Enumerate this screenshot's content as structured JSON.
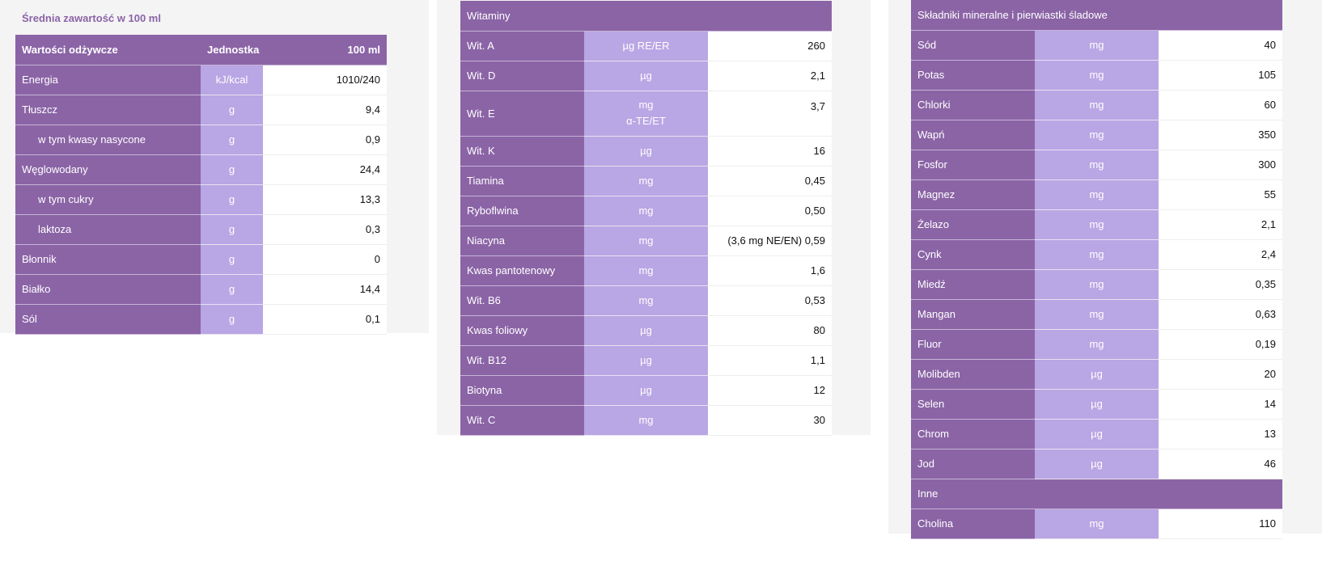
{
  "nutrition": {
    "caption": "Średnia zawartość w 100 ml",
    "header": {
      "name": "Wartości odżywcze",
      "unit": "Jednostka",
      "value": "100 ml"
    },
    "rows": [
      {
        "name": "Energia",
        "unit": "kJ/kcal",
        "value": "1010/240",
        "indent": false
      },
      {
        "name": "Tłuszcz",
        "unit": "g",
        "value": "9,4",
        "indent": false
      },
      {
        "name": "w tym kwasy nasycone",
        "unit": "g",
        "value": "0,9",
        "indent": true
      },
      {
        "name": "Węglowodany",
        "unit": "g",
        "value": "24,4",
        "indent": false
      },
      {
        "name": "w tym cukry",
        "unit": "g",
        "value": "13,3",
        "indent": true
      },
      {
        "name": "laktoza",
        "unit": "g",
        "value": "0,3",
        "indent": true
      },
      {
        "name": "Błonnik",
        "unit": "g",
        "value": "0",
        "indent": false
      },
      {
        "name": "Białko",
        "unit": "g",
        "value": "14,4",
        "indent": false
      },
      {
        "name": "Sól",
        "unit": "g",
        "value": "0,1",
        "indent": false
      }
    ]
  },
  "vitamins": {
    "title": "Witaminy",
    "rows": [
      {
        "name": "Wit. A",
        "unit": "µg RE/ER",
        "value": "260"
      },
      {
        "name": "Wit. D",
        "unit": "µg",
        "value": "2,1"
      },
      {
        "name": "Wit. E",
        "unit": "mg",
        "unit2": "α-TE/ET",
        "value": "3,7"
      },
      {
        "name": "Wit. K",
        "unit": "µg",
        "value": "16"
      },
      {
        "name": "Tiamina",
        "unit": "mg",
        "value": "0,45"
      },
      {
        "name": "Ryboflwina",
        "unit": "mg",
        "value": "0,50"
      },
      {
        "name": "Niacyna",
        "unit": "mg",
        "value": "(3,6 mg NE/EN) 0,59"
      },
      {
        "name": "Kwas pantotenowy",
        "unit": "mg",
        "value": "1,6"
      },
      {
        "name": "Wit. B6",
        "unit": "mg",
        "value": "0,53"
      },
      {
        "name": "Kwas foliowy",
        "unit": "µg",
        "value": "80"
      },
      {
        "name": "Wit. B12",
        "unit": "µg",
        "value": "1,1"
      },
      {
        "name": "Biotyna",
        "unit": "µg",
        "value": "12"
      },
      {
        "name": "Wit. C",
        "unit": "mg",
        "value": "30"
      }
    ]
  },
  "minerals": {
    "title": "Składniki mineralne i pierwiastki śladowe",
    "rows": [
      {
        "name": "Sód",
        "unit": "mg",
        "value": "40"
      },
      {
        "name": "Potas",
        "unit": "mg",
        "value": "105"
      },
      {
        "name": "Chlorki",
        "unit": "mg",
        "value": "60"
      },
      {
        "name": "Wapń",
        "unit": "mg",
        "value": "350"
      },
      {
        "name": "Fosfor",
        "unit": "mg",
        "value": "300"
      },
      {
        "name": "Magnez",
        "unit": "mg",
        "value": "55"
      },
      {
        "name": "Żelazo",
        "unit": "mg",
        "value": "2,1"
      },
      {
        "name": "Cynk",
        "unit": "mg",
        "value": "2,4"
      },
      {
        "name": "Miedź",
        "unit": "mg",
        "value": "0,35"
      },
      {
        "name": "Mangan",
        "unit": "mg",
        "value": "0,63"
      },
      {
        "name": "Fluor",
        "unit": "mg",
        "value": "0,19"
      },
      {
        "name": "Molibden",
        "unit": "µg",
        "value": "20"
      },
      {
        "name": "Selen",
        "unit": "µg",
        "value": "14"
      },
      {
        "name": "Chrom",
        "unit": "µg",
        "value": "13"
      },
      {
        "name": "Jod",
        "unit": "µg",
        "value": "46"
      }
    ],
    "other_title": "Inne",
    "other_rows": [
      {
        "name": "Cholina",
        "unit": "mg",
        "value": "110"
      }
    ]
  }
}
